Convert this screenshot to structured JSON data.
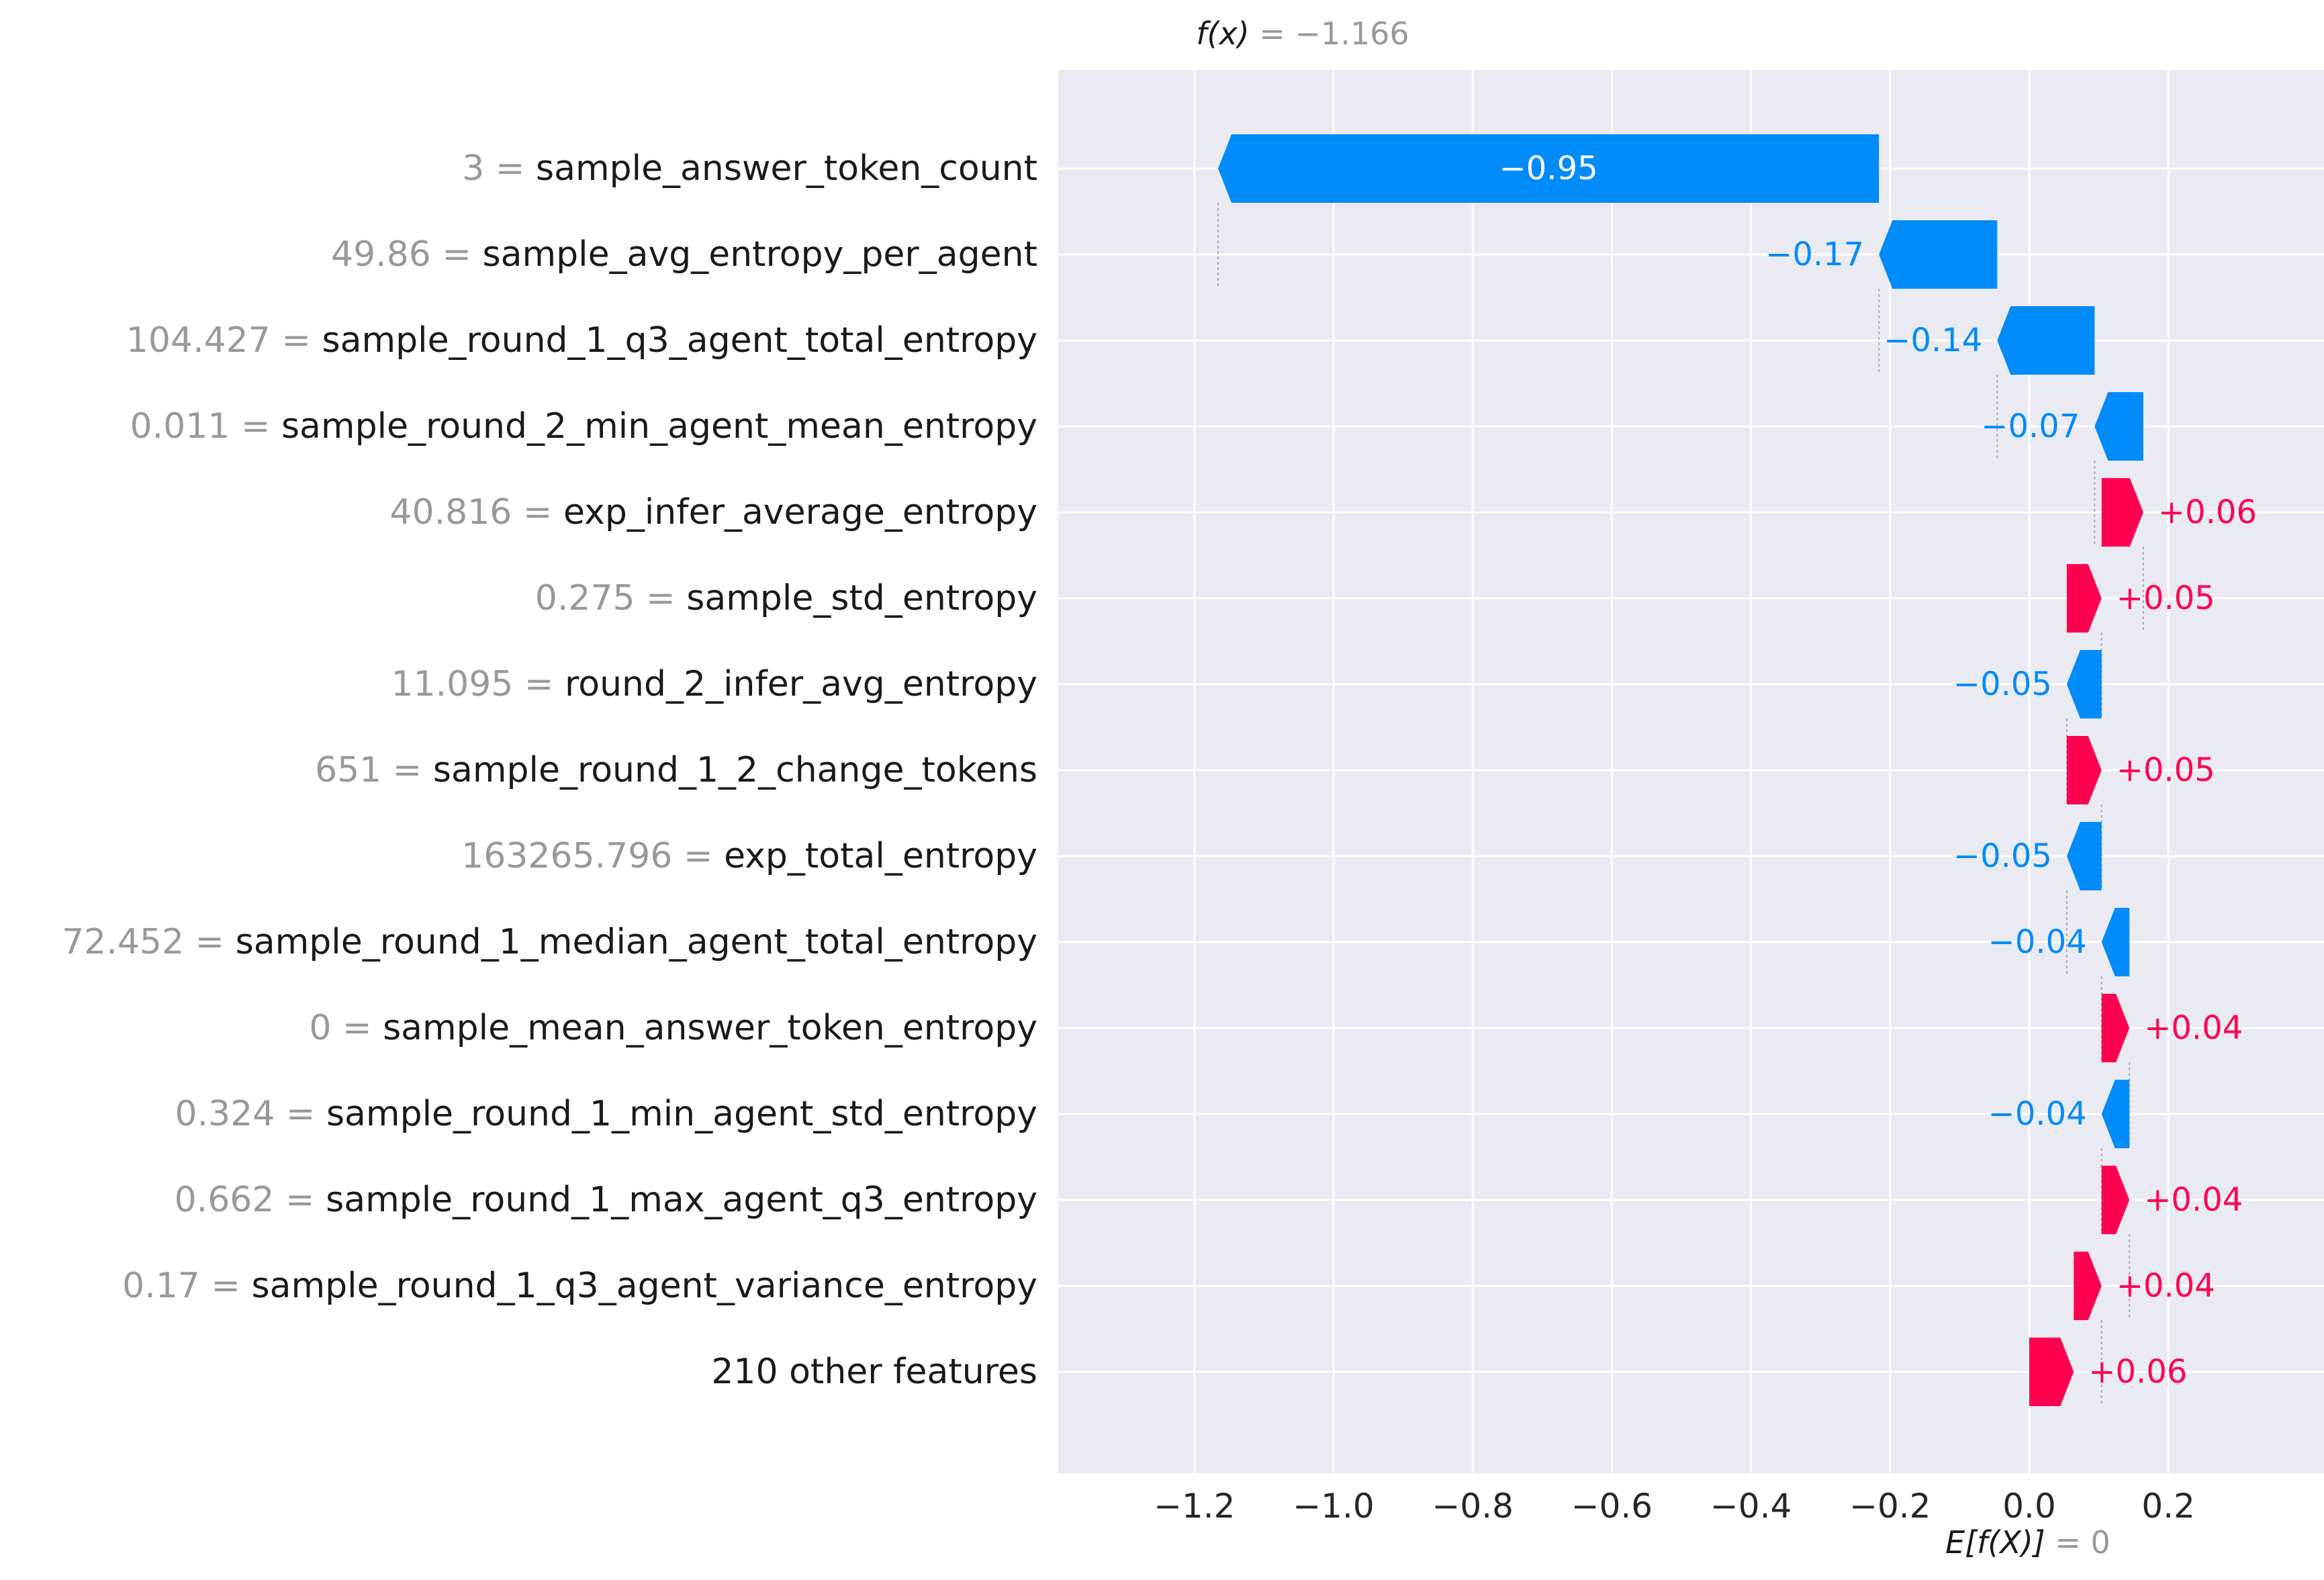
{
  "chart_data": {
    "type": "bar",
    "subtype": "shap-waterfall",
    "fx_label": "f(x)",
    "fx_value": "−1.166",
    "fx_num": -1.166,
    "base_label": "E[f(X)]",
    "base_value_text": "0",
    "base_value": 0,
    "xlim": [
      -1.37,
      0.39
    ],
    "xticks": [
      -1.2,
      -1.0,
      -0.8,
      -0.6,
      -0.4,
      -0.2,
      0.0,
      0.2
    ],
    "xtick_labels": [
      "−1.2",
      "−1.0",
      "−0.8",
      "−0.6",
      "−0.4",
      "−0.2",
      "0.0",
      "0.2"
    ],
    "grid": true,
    "colors": {
      "negative": "#008bfb",
      "positive": "#ff0051",
      "background": "#eaeaf2",
      "grid": "#ffffff"
    },
    "features": [
      {
        "value": "3",
        "name": "sample_answer_token_count",
        "start": -0.216,
        "end": -1.166,
        "label": "−0.95"
      },
      {
        "value": "49.86",
        "name": "sample_avg_entropy_per_agent",
        "start": -0.046,
        "end": -0.216,
        "label": "−0.17"
      },
      {
        "value": "104.427",
        "name": "sample_round_1_q3_agent_total_entropy",
        "start": 0.094,
        "end": -0.046,
        "label": "−0.14"
      },
      {
        "value": "0.011",
        "name": "sample_round_2_min_agent_mean_entropy",
        "start": 0.164,
        "end": 0.094,
        "label": "−0.07"
      },
      {
        "value": "40.816",
        "name": "exp_infer_average_entropy",
        "start": 0.104,
        "end": 0.164,
        "label": "+0.06"
      },
      {
        "value": "0.275",
        "name": "sample_std_entropy",
        "start": 0.054,
        "end": 0.104,
        "label": "+0.05"
      },
      {
        "value": "11.095",
        "name": "round_2_infer_avg_entropy",
        "start": 0.104,
        "end": 0.054,
        "label": "−0.05"
      },
      {
        "value": "651",
        "name": "sample_round_1_2_change_tokens",
        "start": 0.054,
        "end": 0.104,
        "label": "+0.05"
      },
      {
        "value": "163265.796",
        "name": "exp_total_entropy",
        "start": 0.104,
        "end": 0.054,
        "label": "−0.05"
      },
      {
        "value": "72.452",
        "name": "sample_round_1_median_agent_total_entropy",
        "start": 0.144,
        "end": 0.104,
        "label": "−0.04"
      },
      {
        "value": "0",
        "name": "sample_mean_answer_token_entropy",
        "start": 0.104,
        "end": 0.144,
        "label": "+0.04"
      },
      {
        "value": "0.324",
        "name": "sample_round_1_min_agent_std_entropy",
        "start": 0.144,
        "end": 0.104,
        "label": "−0.04"
      },
      {
        "value": "0.662",
        "name": "sample_round_1_max_agent_q3_entropy",
        "start": 0.104,
        "end": 0.144,
        "label": "+0.04"
      },
      {
        "value": "0.17",
        "name": "sample_round_1_q3_agent_variance_entropy",
        "start": 0.064,
        "end": 0.104,
        "label": "+0.04"
      },
      {
        "value": "",
        "name": "210 other features",
        "start": 0.0,
        "end": 0.064,
        "label": "+0.06"
      }
    ]
  }
}
